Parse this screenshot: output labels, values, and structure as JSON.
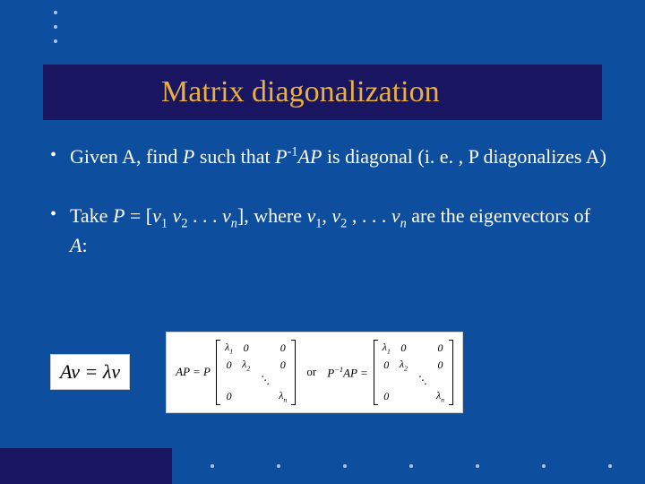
{
  "title": "Matrix diagonalization",
  "bullets": {
    "b1": {
      "given": "Given A, find ",
      "p1": "P",
      "such": " such that ",
      "expr": "P",
      "sup": "-1",
      "ap": "AP",
      "rest": " is diagonal (i. e. , P diagonalizes A)"
    },
    "b2": {
      "take": "Take ",
      "p": "P",
      "eq": " = [",
      "v": "v",
      "s1": "1",
      "sp1": " ",
      "s2": "2",
      "dots1": " . . . ",
      "sn": "n",
      "br": "], where ",
      "c1": ", ",
      "c2": " , . . . ",
      "rest": " are the eigenvectors of ",
      "a": "A",
      "colon": ":"
    }
  },
  "eq": "Av = λv",
  "matbox": {
    "lbl1": "AP = P",
    "or": "or",
    "lbl2": "P",
    "sup2": "−1",
    "lbl2b": "AP ="
  },
  "matrix": {
    "rows": [
      [
        "λ",
        "1",
        "0",
        "",
        "0"
      ],
      [
        "0",
        "",
        "λ",
        "2",
        "0"
      ],
      [
        "",
        "",
        "",
        "",
        "⋱"
      ],
      [
        "0",
        "",
        "",
        "",
        "λ",
        "n"
      ]
    ]
  },
  "colors": {
    "bg": "#0d4f9e",
    "titlebar": "#1a1560",
    "title_text": "#e8b040",
    "body_text": "#ffffff",
    "dot": "#a8c4e8"
  }
}
